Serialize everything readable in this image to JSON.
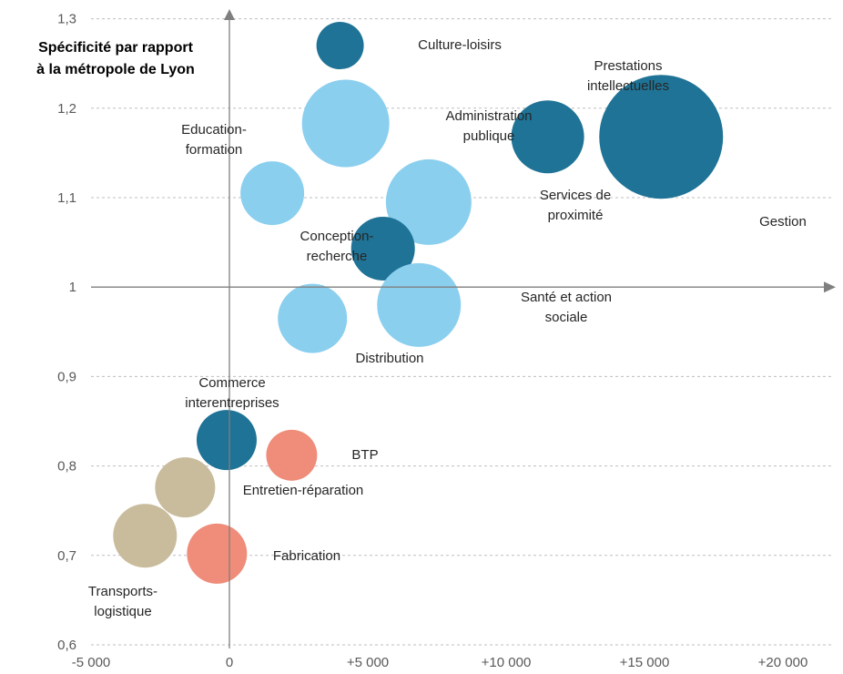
{
  "chart_data": {
    "type": "bubble",
    "ylabel": "Spécificité par rapport à la métropole de Lyon",
    "ylabel_lines": [
      "Spécificité par rapport",
      "à la métropole de Lyon"
    ],
    "xlim": [
      -5000,
      22000
    ],
    "ylim": [
      0.6,
      1.3
    ],
    "x_ticks": [
      {
        "value": -5000,
        "label": "-5 000"
      },
      {
        "value": 0,
        "label": "0"
      },
      {
        "value": 5000,
        "label": "+5 000"
      },
      {
        "value": 10000,
        "label": "+10 000"
      },
      {
        "value": 15000,
        "label": "+15 000"
      },
      {
        "value": 20000,
        "label": "+20 000"
      }
    ],
    "y_ticks": [
      {
        "value": 0.6,
        "label": "0,6"
      },
      {
        "value": 0.7,
        "label": "0,7"
      },
      {
        "value": 0.8,
        "label": "0,8"
      },
      {
        "value": 0.9,
        "label": "0,9"
      },
      {
        "value": 1.0,
        "label": "1"
      },
      {
        "value": 1.1,
        "label": "1,1"
      },
      {
        "value": 1.2,
        "label": "1,2"
      },
      {
        "value": 1.3,
        "label": "1,3"
      }
    ],
    "grid_y": true,
    "colors": {
      "dark_blue": "#1f7396",
      "light_blue": "#8bcfef",
      "beige": "#c8bc9c",
      "salmon": "#ef8c7a",
      "grid": "#bfbfbf",
      "axis": "#7f7f7f"
    },
    "points": [
      {
        "name": "Culture-loisirs",
        "label_lines": [
          "Culture-loisirs"
        ],
        "x": 4000,
        "y": 1.27,
        "size": 26,
        "color": "dark_blue"
      },
      {
        "name": "Administration publique",
        "label_lines": [
          "Administration",
          "publique"
        ],
        "x": 4200,
        "y": 1.183,
        "size": 48,
        "color": "light_blue"
      },
      {
        "name": "Education-formation",
        "label_lines": [
          "Education-",
          "formation"
        ],
        "x": 1550,
        "y": 1.105,
        "size": 35,
        "color": "light_blue"
      },
      {
        "name": "Prestations intellectuelles",
        "label_lines": [
          "Prestations",
          "intellectuelles"
        ],
        "x": 11500,
        "y": 1.168,
        "size": 40,
        "color": "dark_blue"
      },
      {
        "name": "Gestion",
        "label_lines": [
          "Gestion"
        ],
        "x": 15600,
        "y": 1.168,
        "size": 68,
        "color": "dark_blue"
      },
      {
        "name": "Services de proximité",
        "label_lines": [
          "Services de",
          "proximité"
        ],
        "x": 7200,
        "y": 1.095,
        "size": 47,
        "color": "light_blue"
      },
      {
        "name": "Conception-recherche",
        "label_lines": [
          "Conception-",
          "recherche"
        ],
        "x": 5550,
        "y": 1.043,
        "size": 35,
        "color": "dark_blue"
      },
      {
        "name": "Santé et action sociale",
        "label_lines": [
          "Santé et action",
          "sociale"
        ],
        "x": 6850,
        "y": 0.98,
        "size": 46,
        "color": "light_blue"
      },
      {
        "name": "Distribution",
        "label_lines": [
          "Distribution"
        ],
        "x": 3000,
        "y": 0.965,
        "size": 38,
        "color": "light_blue"
      },
      {
        "name": "Commerce interentreprises",
        "label_lines": [
          "Commerce",
          "interentreprises"
        ],
        "x": -100,
        "y": 0.829,
        "size": 33,
        "color": "dark_blue"
      },
      {
        "name": "BTP",
        "label_lines": [
          "BTP"
        ],
        "x": 2250,
        "y": 0.812,
        "size": 28,
        "color": "salmon"
      },
      {
        "name": "Entretien-réparation",
        "label_lines": [
          "Entretien-réparation"
        ],
        "x": -1600,
        "y": 0.776,
        "size": 33,
        "color": "beige"
      },
      {
        "name": "Transports-logistique",
        "label_lines": [
          "Transports-",
          "logistique"
        ],
        "x": -3050,
        "y": 0.722,
        "size": 35,
        "color": "beige"
      },
      {
        "name": "Fabrication",
        "label_lines": [
          "Fabrication"
        ],
        "x": -450,
        "y": 0.702,
        "size": 33,
        "color": "salmon"
      }
    ]
  }
}
